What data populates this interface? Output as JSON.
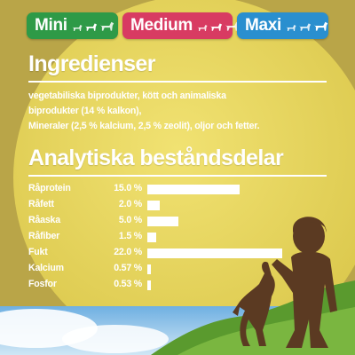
{
  "badges": [
    {
      "label": "Mini",
      "color": "#2e9a47"
    },
    {
      "label": "Medium",
      "color": "#d83b62"
    },
    {
      "label": "Maxi",
      "color": "#2a8fcf"
    }
  ],
  "ingredients": {
    "title": "Ingredienser",
    "line1": "vegetabiliska biprodukter, kött och animaliska",
    "line2": "biprodukter (14 % kalkon),",
    "line3": "Mineraler (2,5 % kalcium, 2,5 % zeolit), oljor och fetter."
  },
  "analysis": {
    "title": "Analytiska beståndsdelar",
    "max_percent": 22.0,
    "rows": [
      {
        "name": "Råprotein",
        "value_label": "15.0 %",
        "percent": 15.0
      },
      {
        "name": "Råfett",
        "value_label": "2.0 %",
        "percent": 2.0
      },
      {
        "name": "Råaska",
        "value_label": "5.0 %",
        "percent": 5.0
      },
      {
        "name": "Råfiber",
        "value_label": "1.5 %",
        "percent": 1.5
      },
      {
        "name": "Fukt",
        "value_label": "22.0 %",
        "percent": 22.0
      },
      {
        "name": "Kalcium",
        "value_label": "0.57 %",
        "percent": 0.57
      },
      {
        "name": "Fosfor",
        "value_label": "0.53 %",
        "percent": 0.53
      }
    ]
  },
  "colors": {
    "background": "#b9a548",
    "moon": "#e7d75b",
    "sky": "#5aa0d6",
    "grass": "#5a9a2e",
    "silhouette": "#5b3a22"
  }
}
